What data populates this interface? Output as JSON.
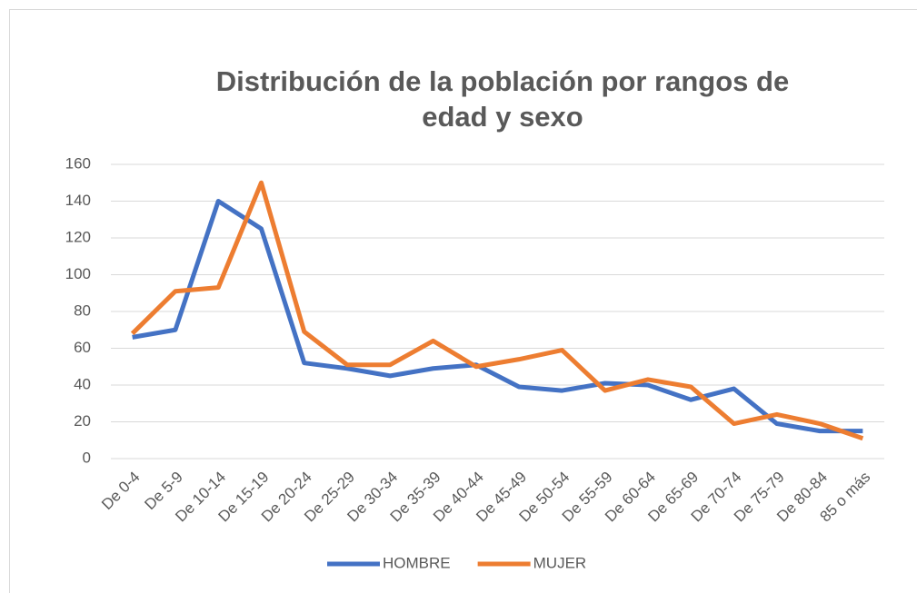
{
  "chart_data": {
    "type": "line",
    "title": "Distribución de la población por rangos de edad y sexo",
    "categories": [
      "De 0-4",
      "De 5-9",
      "De 10-14",
      "De 15-19",
      "De 20-24",
      "De 25-29",
      "De 30-34",
      "De 35-39",
      "De 40-44",
      "De 45-49",
      "De 50-54",
      "De 55-59",
      "De 60-64",
      "De 65-69",
      "De 70-74",
      "De 75-79",
      "De 80-84",
      "85 o más"
    ],
    "series": [
      {
        "name": "HOMBRE",
        "color": "#4472c4",
        "values": [
          66,
          70,
          140,
          125,
          52,
          49,
          45,
          49,
          51,
          39,
          37,
          41,
          40,
          32,
          38,
          19,
          15,
          15
        ]
      },
      {
        "name": "MUJER",
        "color": "#ed7d31",
        "values": [
          68,
          91,
          93,
          150,
          69,
          51,
          51,
          64,
          50,
          54,
          59,
          37,
          43,
          39,
          19,
          24,
          19,
          11
        ]
      }
    ],
    "ylim": [
      0,
      160
    ],
    "yticks": [
      0,
      20,
      40,
      60,
      80,
      100,
      120,
      140,
      160
    ],
    "grid": true,
    "legend": "bottom"
  }
}
